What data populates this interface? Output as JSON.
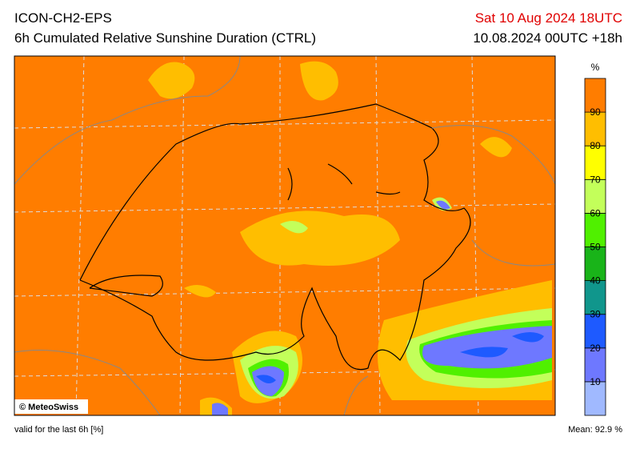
{
  "header": {
    "model": "ICON-CH2-EPS",
    "product": "6h Cumulated Relative Sunshine Duration (CTRL)",
    "valid_time": "Sat 10 Aug 2024 18UTC",
    "run": "10.08.2024 00UTC +18h"
  },
  "colorbar": {
    "unit": "%",
    "ticks": [
      10,
      20,
      30,
      40,
      50,
      60,
      70,
      80,
      90
    ],
    "colors": [
      "#a0b9ff",
      "#6e78ff",
      "#1e5aff",
      "#10968c",
      "#19b419",
      "#50f000",
      "#c3ff5a",
      "#ffff00",
      "#ffbe00",
      "#ff7d00"
    ]
  },
  "credit": "© MeteoSwiss",
  "footer": {
    "validity": "valid for the last 6h [%]",
    "mean": "Mean:  92.9 %"
  }
}
